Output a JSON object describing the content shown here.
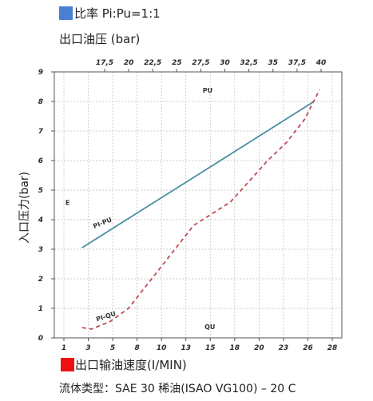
{
  "legend_top": {
    "label": "比率 Pi:Pu=1:1",
    "color": "#4a7fd4"
  },
  "top_axis_title": "出口油压 (bar)",
  "side_axis_title": "入口压力(bar)",
  "legend_bottom": {
    "label": "出口输油速度(I/MIN)",
    "color": "#ee1111"
  },
  "fluid_info": "流体类型：SAE 30 稀油(ISAO VG100) – 20 C",
  "chart_data": {
    "type": "line",
    "xlim": [
      0,
      31
    ],
    "ylim": [
      0,
      9
    ],
    "bottom_ticks": [
      "1",
      "3",
      "5",
      "8",
      "10",
      "13",
      "15",
      "18",
      "20",
      "23",
      "26",
      "28"
    ],
    "top_ticks": [
      "17,5",
      "20",
      "22,5",
      "25",
      "27,5",
      "30",
      "32,5",
      "35",
      "37,5",
      "40"
    ],
    "left_ticks": [
      "0",
      "1",
      "2",
      "3",
      "4",
      "5",
      "6",
      "7",
      "8",
      "9"
    ],
    "grid": true,
    "annotations": [
      {
        "text": "PU",
        "x": 16,
        "y": 8.3
      },
      {
        "text": "QU",
        "x": 16.2,
        "y": 0.3
      },
      {
        "text": "E",
        "x": 1.2,
        "y": 4.5
      }
    ],
    "series": [
      {
        "name": "PI-PU",
        "style": "solid",
        "color": "#4a8fa0",
        "x": [
          3,
          28
        ],
        "y": [
          3.05,
          8.0
        ]
      },
      {
        "name": "PI-QU",
        "style": "dashed",
        "color": "#c04a55",
        "x": [
          3,
          4,
          6,
          8,
          10,
          12,
          15,
          17,
          19,
          21,
          23,
          25,
          27,
          28.6
        ],
        "y": [
          0.35,
          0.3,
          0.55,
          1.0,
          1.8,
          2.6,
          3.8,
          4.2,
          4.6,
          5.3,
          6.0,
          6.6,
          7.4,
          8.4
        ]
      }
    ]
  }
}
